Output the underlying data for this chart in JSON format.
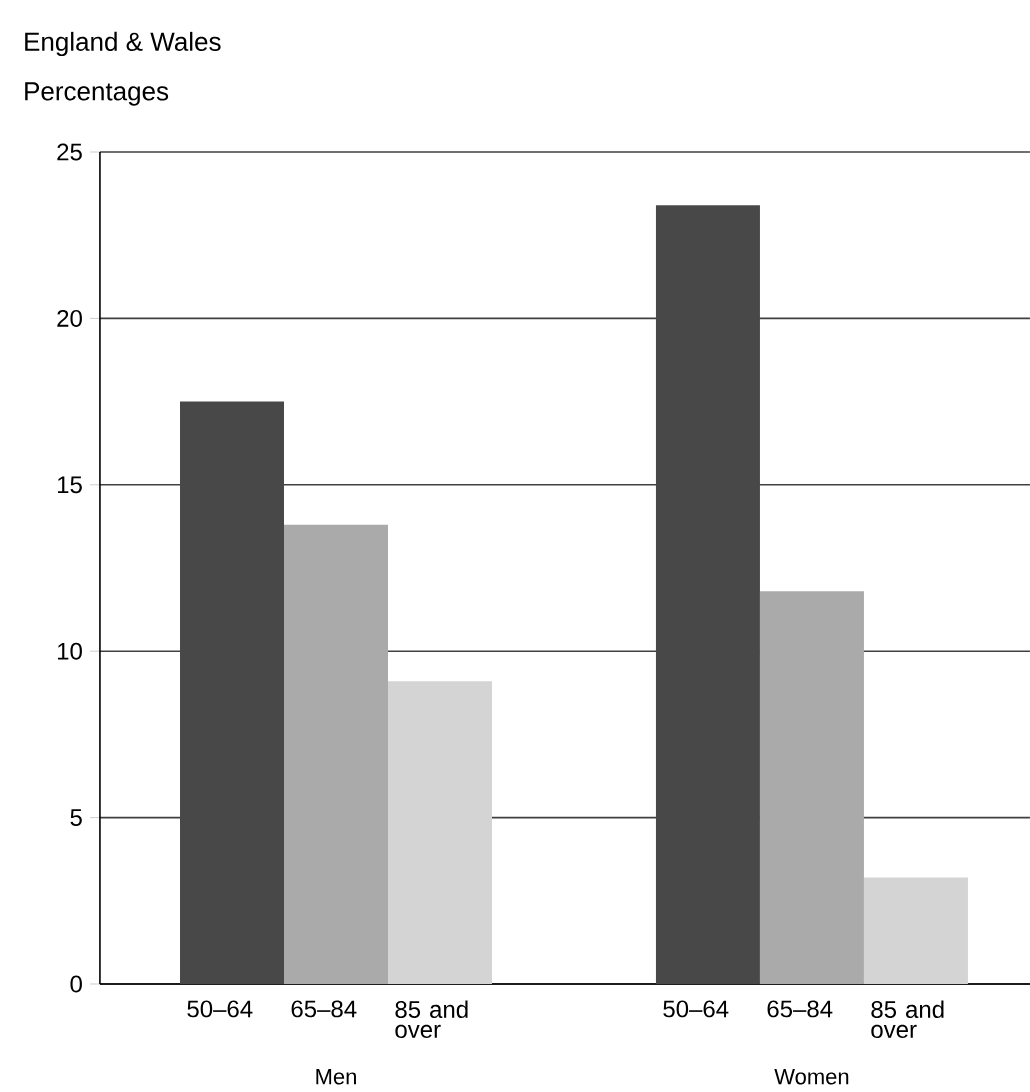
{
  "chart_data": {
    "type": "bar",
    "title": "England & Wales",
    "ylabel": "Percentages",
    "categories": [
      "Men",
      "Women"
    ],
    "series": [
      {
        "name": "50–64",
        "color": "#484848",
        "values": [
          17.5,
          23.4
        ]
      },
      {
        "name": "65–84",
        "color": "#aaaaaa",
        "values": [
          13.8,
          11.8
        ]
      },
      {
        "name": "85 and over",
        "color": "#d4d4d4",
        "values": [
          9.1,
          3.2
        ]
      }
    ],
    "ylim": [
      0,
      25
    ],
    "yticks": [
      0,
      5,
      10,
      15,
      20,
      25
    ],
    "grid": "y"
  }
}
